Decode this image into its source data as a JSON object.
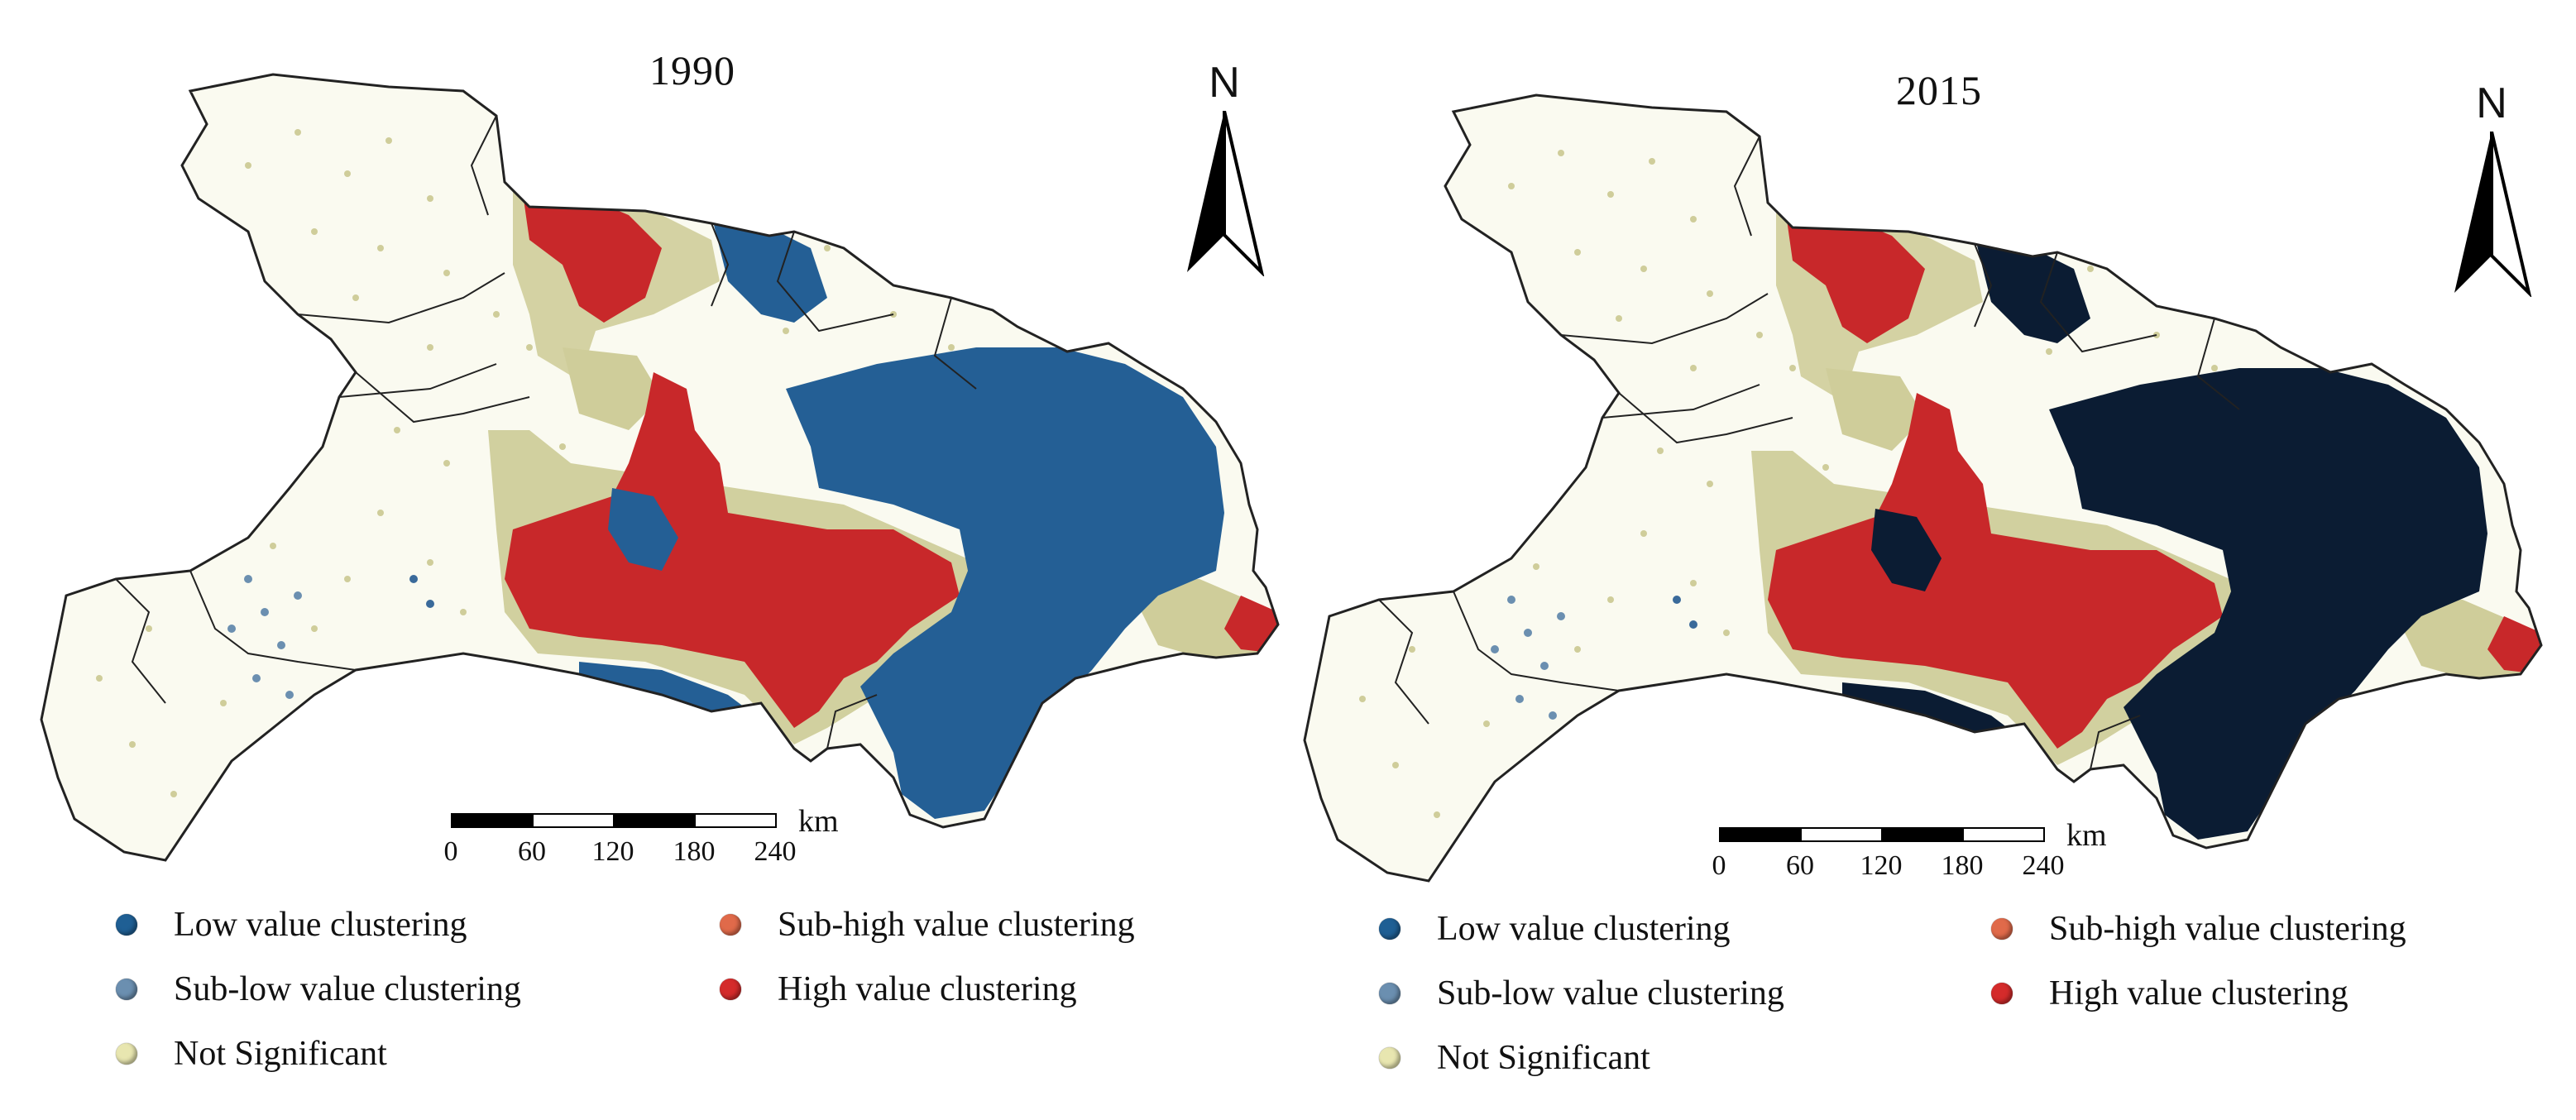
{
  "panels": [
    {
      "title": "1990",
      "north_label": "N",
      "scale": {
        "unit": "km",
        "ticks": [
          "0",
          "60",
          "120",
          "180",
          "240"
        ]
      },
      "legend": [
        {
          "label": "Low value clustering",
          "color": "#1f5f94"
        },
        {
          "label": "Sub-high value clustering",
          "color": "#e06a4a"
        },
        {
          "label": "Sub-low value clustering",
          "color": "#6b8fb0"
        },
        {
          "label": "High value clustering",
          "color": "#d42b2b"
        },
        {
          "label": "Not Significant",
          "color": "#e8e6b0"
        }
      ]
    },
    {
      "title": "2015",
      "north_label": "N",
      "scale": {
        "unit": "km",
        "ticks": [
          "0",
          "60",
          "120",
          "180",
          "240"
        ]
      },
      "legend": [
        {
          "label": "Low value clustering",
          "color": "#1f5f94"
        },
        {
          "label": "Sub-high value clustering",
          "color": "#e06a4a"
        },
        {
          "label": "Sub-low value clustering",
          "color": "#6b8fb0"
        },
        {
          "label": "High value clustering",
          "color": "#d42b2b"
        },
        {
          "label": "Not Significant",
          "color": "#e8e6b0"
        }
      ]
    }
  ],
  "map_colors": {
    "high": "#c8282a",
    "low_1990": "#245f95",
    "low_2015": "#0b1c33",
    "not_significant": "#cfcd9a",
    "boundary": "#222222"
  }
}
